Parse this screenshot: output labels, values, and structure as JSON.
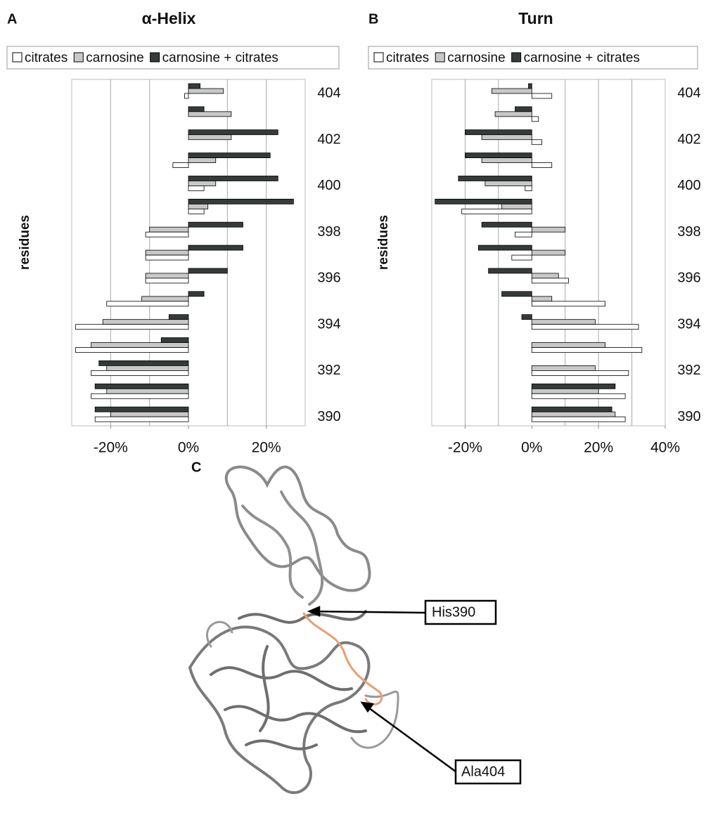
{
  "chart_data": [
    {
      "type": "barh",
      "panel_label": "A",
      "title": "α-Helix",
      "y_label": "residues",
      "categories": [
        "390",
        null,
        "392",
        null,
        "394",
        null,
        "396",
        null,
        "398",
        null,
        "400",
        null,
        "402",
        null,
        "404"
      ],
      "series": [
        {
          "name": "citrates",
          "color": "#ffffff",
          "values": [
            -24,
            -25,
            -25,
            -29,
            -29,
            -21,
            -11,
            -11,
            -11,
            4,
            4,
            -4,
            0,
            0,
            -1
          ]
        },
        {
          "name": "carnosine",
          "color": "#c8c8c8",
          "values": [
            -20,
            -21,
            -21,
            -25,
            -22,
            -12,
            -11,
            -11,
            -10,
            5,
            7,
            7,
            11,
            11,
            9
          ]
        },
        {
          "name": "carnosine + citrates",
          "color": "#353b3b",
          "values": [
            -24,
            -24,
            -23,
            -7,
            -5,
            4,
            10,
            14,
            14,
            27,
            23,
            21,
            23,
            4,
            3
          ]
        }
      ],
      "xlim": [
        -30,
        30
      ],
      "xticks": [
        {
          "value": -20,
          "label": "-20%"
        },
        {
          "value": 0,
          "label": "0%"
        },
        {
          "value": 20,
          "label": "20%"
        }
      ],
      "xgrid": [
        -20,
        -10,
        10,
        20
      ],
      "legend": "top"
    },
    {
      "type": "barh",
      "panel_label": "B",
      "title": "Turn",
      "y_label": "residues",
      "categories": [
        "390",
        null,
        "392",
        null,
        "394",
        null,
        "396",
        null,
        "398",
        null,
        "400",
        null,
        "402",
        null,
        "404"
      ],
      "series": [
        {
          "name": "citrates",
          "color": "#ffffff",
          "values": [
            28,
            28,
            29,
            33,
            32,
            22,
            11,
            -6,
            -5,
            -21,
            -2,
            6,
            3,
            2,
            6
          ]
        },
        {
          "name": "carnosine",
          "color": "#c8c8c8",
          "values": [
            25,
            20,
            19,
            22,
            19,
            6,
            8,
            10,
            10,
            -9,
            -14,
            -15,
            -15,
            -11,
            -12
          ]
        },
        {
          "name": "carnosine + citrates",
          "color": "#353b3b",
          "values": [
            24,
            25,
            0,
            0,
            -3,
            -9,
            -13,
            -16,
            -15,
            -29,
            -22,
            -20,
            -20,
            -5,
            -1
          ]
        }
      ],
      "xlim": [
        -30,
        40
      ],
      "xticks": [
        {
          "value": -20,
          "label": "-20%"
        },
        {
          "value": 0,
          "label": "0%"
        },
        {
          "value": 20,
          "label": "20%"
        },
        {
          "value": 40,
          "label": "40%"
        }
      ],
      "xgrid": [
        -20,
        -10,
        10,
        20,
        30
      ],
      "legend": "top"
    }
  ],
  "structure": {
    "panel_label": "C",
    "annotations": [
      "His390",
      "Ala404"
    ]
  }
}
